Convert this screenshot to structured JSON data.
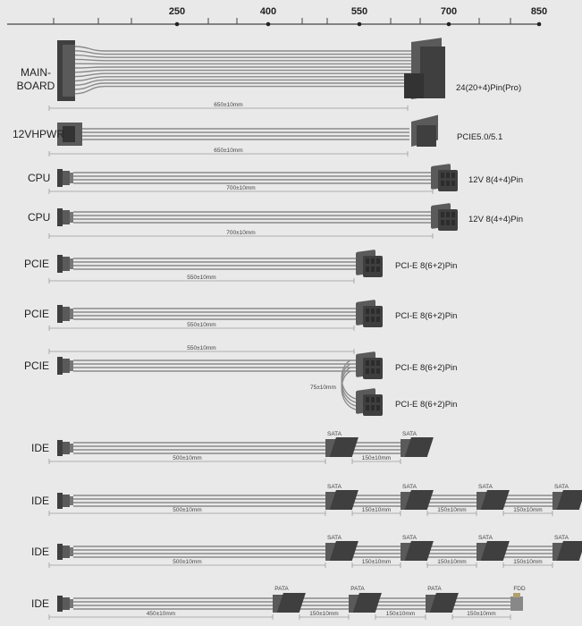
{
  "scale": {
    "ticks": [
      "250",
      "400",
      "550",
      "700",
      "850"
    ]
  },
  "cables": [
    {
      "label_lines": [
        "MAIN-",
        "BOARD"
      ],
      "connector": "24(20+4)Pin(Pro)",
      "length": "650±10mm"
    },
    {
      "label_lines": [
        "12VHPWR"
      ],
      "connector": "PCIE5.0/5.1",
      "length": "650±10mm"
    },
    {
      "label_lines": [
        "CPU"
      ],
      "connector": "12V 8(4+4)Pin",
      "length": "700±10mm"
    },
    {
      "label_lines": [
        "CPU"
      ],
      "connector": "12V 8(4+4)Pin",
      "length": "700±10mm"
    },
    {
      "label_lines": [
        "PCIE"
      ],
      "connector": "PCI-E 8(6+2)Pin",
      "length": "550±10mm"
    },
    {
      "label_lines": [
        "PCIE"
      ],
      "connector": "PCI-E 8(6+2)Pin",
      "length": "550±10mm"
    },
    {
      "label_lines": [
        "PCIE"
      ],
      "connectors": [
        "PCI-E 8(6+2)Pin",
        "PCI-E 8(6+2)Pin"
      ],
      "length": "550±10mm",
      "branch_length": "75±10mm"
    },
    {
      "label_lines": [
        "IDE"
      ],
      "plugs": [
        "SATA",
        "SATA"
      ],
      "lengths": [
        "500±10mm",
        "150±10mm"
      ]
    },
    {
      "label_lines": [
        "IDE"
      ],
      "plugs": [
        "SATA",
        "SATA",
        "SATA",
        "SATA"
      ],
      "lengths": [
        "500±10mm",
        "150±10mm",
        "150±10mm",
        "150±10mm"
      ]
    },
    {
      "label_lines": [
        "IDE"
      ],
      "plugs": [
        "SATA",
        "SATA",
        "SATA",
        "SATA"
      ],
      "lengths": [
        "500±10mm",
        "150±10mm",
        "150±10mm",
        "150±10mm"
      ]
    },
    {
      "label_lines": [
        "IDE"
      ],
      "plugs": [
        "PATA",
        "PATA",
        "PATA",
        "FDD"
      ],
      "lengths": [
        "450±10mm",
        "150±10mm",
        "150±10mm",
        "150±10mm"
      ]
    }
  ],
  "colors": {
    "background": "#e9e9e9",
    "wire": "#8a8a8a",
    "connector": "#5a5a5a",
    "connector_dark": "#3f3f3f",
    "dimension": "#9a9a9a",
    "text": "#222222"
  }
}
